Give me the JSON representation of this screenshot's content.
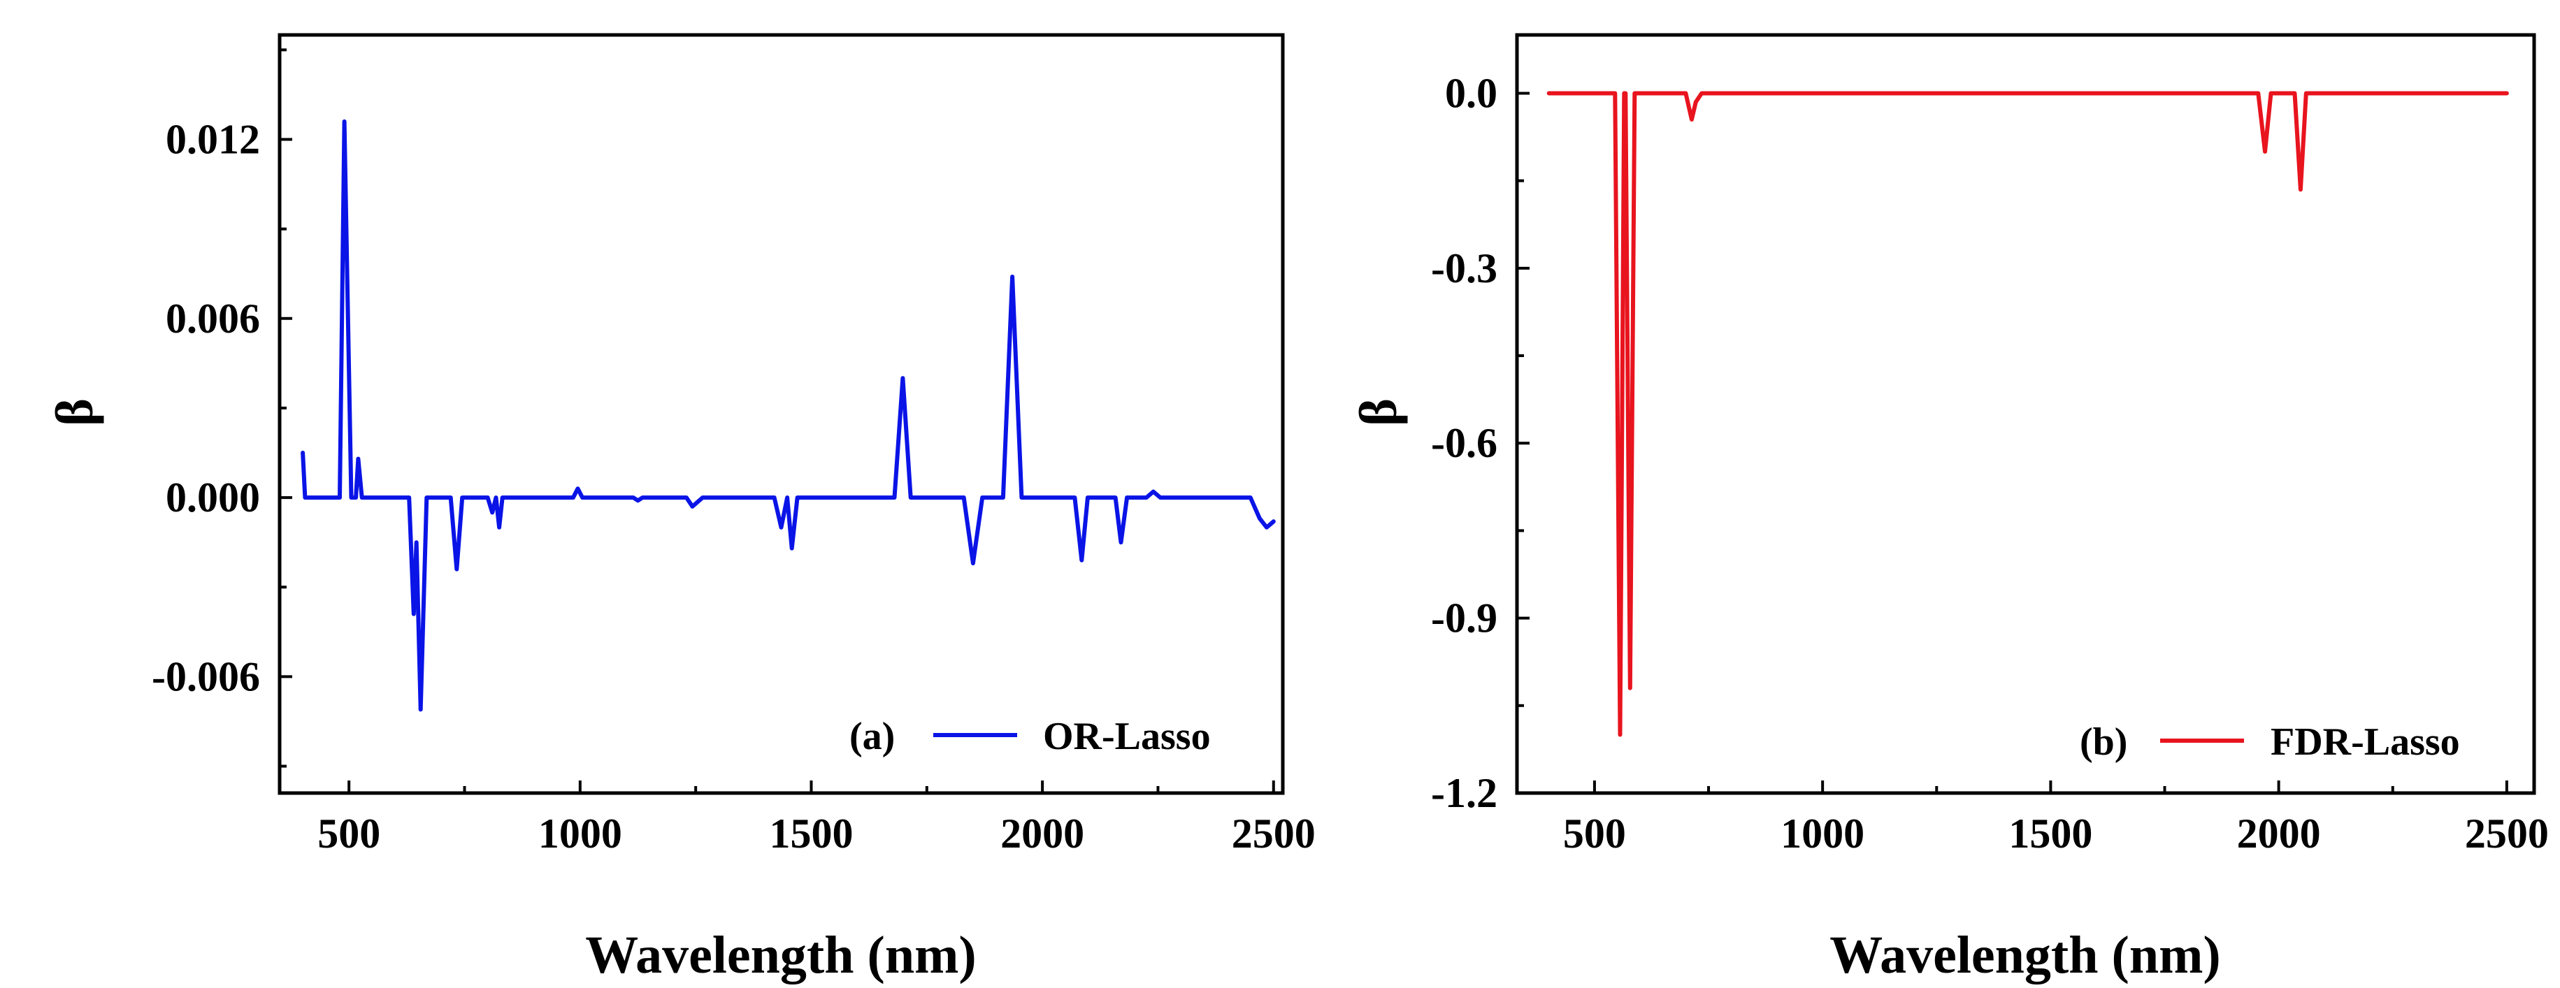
{
  "chart_data": [
    {
      "type": "line",
      "panel_label": "(a)",
      "xlabel": "Wavelength (nm)",
      "ylabel": "β",
      "xlim": [
        350,
        2520
      ],
      "ylim": [
        -0.0099,
        0.0155
      ],
      "xticks": [
        500,
        1000,
        1500,
        2000,
        2500
      ],
      "xtick_labels": [
        "500",
        "1000",
        "1500",
        "2000",
        "2500"
      ],
      "yticks": [
        -0.006,
        0.0,
        0.006,
        0.012
      ],
      "ytick_labels": [
        "-0.006",
        "0.000",
        "0.006",
        "0.012"
      ],
      "legend_position": "bottom-right",
      "series": [
        {
          "name": "OR-Lasso",
          "color": "#0a14e6",
          "points": [
            [
              400,
              0.0015
            ],
            [
              405,
              0.0
            ],
            [
              480,
              0.0
            ],
            [
              490,
              0.0126
            ],
            [
              505,
              0.0
            ],
            [
              515,
              0.0
            ],
            [
              520,
              0.0013
            ],
            [
              528,
              0.0
            ],
            [
              630,
              0.0
            ],
            [
              640,
              -0.0039
            ],
            [
              646,
              -0.0015
            ],
            [
              655,
              -0.0071
            ],
            [
              668,
              0.0
            ],
            [
              720,
              0.0
            ],
            [
              733,
              -0.0024
            ],
            [
              745,
              0.0
            ],
            [
              800,
              0.0
            ],
            [
              810,
              -0.0005
            ],
            [
              818,
              0.0
            ],
            [
              825,
              -0.001
            ],
            [
              832,
              0.0
            ],
            [
              985,
              0.0
            ],
            [
              995,
              0.0003
            ],
            [
              1005,
              0.0
            ],
            [
              1115,
              0.0
            ],
            [
              1125,
              -0.0001
            ],
            [
              1135,
              0.0
            ],
            [
              1230,
              0.0
            ],
            [
              1243,
              -0.0003
            ],
            [
              1265,
              0.0
            ],
            [
              1420,
              0.0
            ],
            [
              1435,
              -0.001
            ],
            [
              1448,
              0.0
            ],
            [
              1458,
              -0.0017
            ],
            [
              1470,
              0.0
            ],
            [
              1680,
              0.0
            ],
            [
              1698,
              0.004
            ],
            [
              1715,
              0.0
            ],
            [
              1830,
              0.0
            ],
            [
              1850,
              -0.0022
            ],
            [
              1870,
              0.0
            ],
            [
              1915,
              0.0
            ],
            [
              1935,
              0.0074
            ],
            [
              1955,
              0.0
            ],
            [
              2070,
              0.0
            ],
            [
              2085,
              -0.0021
            ],
            [
              2098,
              0.0
            ],
            [
              2158,
              0.0
            ],
            [
              2170,
              -0.0015
            ],
            [
              2183,
              0.0
            ],
            [
              2225,
              0.0
            ],
            [
              2240,
              0.0002
            ],
            [
              2255,
              0.0
            ],
            [
              2450,
              0.0
            ],
            [
              2470,
              -0.0007
            ],
            [
              2485,
              -0.001
            ],
            [
              2500,
              -0.0008
            ]
          ]
        }
      ]
    },
    {
      "type": "line",
      "panel_label": "(b)",
      "xlabel": "Wavelength (nm)",
      "ylabel": "β",
      "xlim": [
        330,
        2560
      ],
      "ylim": [
        -1.2,
        0.1
      ],
      "xticks": [
        500,
        1000,
        1500,
        2000,
        2500
      ],
      "xtick_labels": [
        "500",
        "1000",
        "1500",
        "2000",
        "2500"
      ],
      "yticks": [
        -1.2,
        -0.9,
        -0.6,
        -0.3,
        0.0
      ],
      "ytick_labels": [
        "-1.2",
        "-0.9",
        "-0.6",
        "-0.3",
        "0.0"
      ],
      "legend_position": "bottom-right",
      "series": [
        {
          "name": "FDR-Lasso",
          "color": "#e8141e",
          "points": [
            [
              400,
              0.0
            ],
            [
              545,
              0.0
            ],
            [
              556,
              -1.1
            ],
            [
              565,
              0.0
            ],
            [
              568,
              0.0
            ],
            [
              578,
              -1.02
            ],
            [
              588,
              0.0
            ],
            [
              700,
              0.0
            ],
            [
              713,
              -0.045
            ],
            [
              722,
              -0.015
            ],
            [
              735,
              0.0
            ],
            [
              1955,
              0.0
            ],
            [
              1970,
              -0.1
            ],
            [
              1983,
              0.0
            ],
            [
              2035,
              0.0
            ],
            [
              2048,
              -0.165
            ],
            [
              2060,
              0.0
            ],
            [
              2500,
              0.0
            ]
          ]
        }
      ]
    }
  ]
}
